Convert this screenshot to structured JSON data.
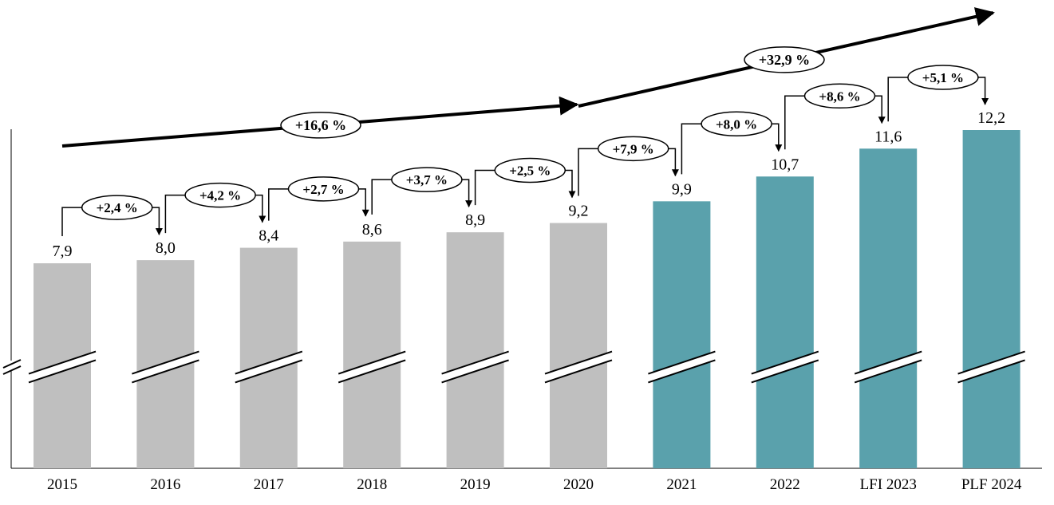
{
  "chart_data": {
    "type": "bar",
    "title": "",
    "xlabel": "",
    "ylabel": "",
    "axis_break": true,
    "categories": [
      "2015",
      "2016",
      "2017",
      "2018",
      "2019",
      "2020",
      "2021",
      "2022",
      "LFI 2023",
      "PLF 2024"
    ],
    "values": [
      7.9,
      8.0,
      8.4,
      8.6,
      8.9,
      9.2,
      9.9,
      10.7,
      11.6,
      12.2
    ],
    "value_labels": [
      "7,9",
      "8,0",
      "8,4",
      "8,6",
      "8,9",
      "9,2",
      "9,9",
      "10,7",
      "11,6",
      "12,2"
    ],
    "bar_colors": [
      "#bfbfbf",
      "#bfbfbf",
      "#bfbfbf",
      "#bfbfbf",
      "#bfbfbf",
      "#bfbfbf",
      "#5aa1ac",
      "#5aa1ac",
      "#5aa1ac",
      "#5aa1ac"
    ],
    "yearly_changes": [
      "+2,4 %",
      "+4,2 %",
      "+2,7 %",
      "+3,7 %",
      "+2,5 %",
      "+7,9 %",
      "+8,0 %",
      "+8,6 %",
      "+5,1 %"
    ],
    "period_changes": [
      {
        "from": "2015",
        "to": "2020",
        "label": "+16,6 %"
      },
      {
        "from": "2020",
        "to": "PLF 2024",
        "label": "+32,9 %"
      }
    ]
  }
}
